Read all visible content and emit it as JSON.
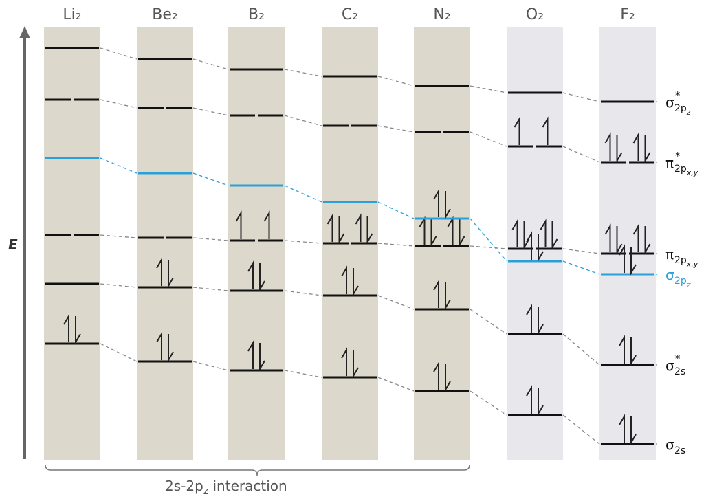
{
  "columns": [
    {
      "label": "Li₂"
    },
    {
      "label": "Be₂"
    },
    {
      "label": "B₂"
    },
    {
      "label": "C₂"
    },
    {
      "label": "N₂"
    },
    {
      "label": "O₂"
    },
    {
      "label": "F₂"
    }
  ],
  "axis_label": "E",
  "orbitals": [
    {
      "symbol": "σ",
      "sup": "*",
      "sub": "2p",
      "subsub": "z"
    },
    {
      "symbol": "π",
      "sup": "*",
      "sub": "2p",
      "subsub": "x,y"
    },
    {
      "symbol": "π",
      "sub": "2p",
      "subsub": "x,y"
    },
    {
      "symbol": "σ",
      "sub": "2p",
      "subsub": "z"
    },
    {
      "symbol": "σ",
      "sup": "*",
      "sub": "2s"
    },
    {
      "symbol": "σ",
      "sub": "2s"
    }
  ],
  "bracket_label": {
    "text": "2s-2p",
    "sub": "z",
    "tail": " interaction"
  }
}
